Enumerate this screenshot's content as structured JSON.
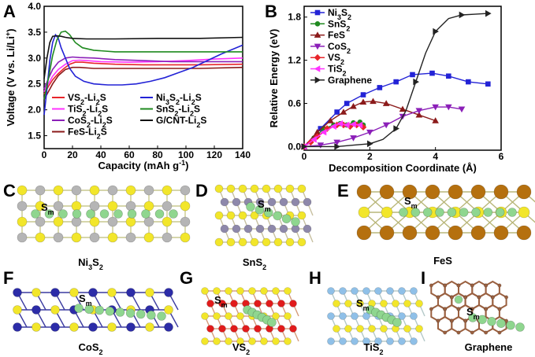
{
  "panel_letters": {
    "A": "A",
    "B": "B",
    "C": "C",
    "D": "D",
    "E": "E",
    "F": "F",
    "G": "G",
    "H": "H",
    "I": "I"
  },
  "chart_data": [
    {
      "type": "line",
      "panel": "A",
      "xlabel": "Capacity (mAh g",
      "xlabel_sup": "-1",
      "xlabel_end": ")",
      "ylabel": "Voltage (V vs. Li/Li",
      "ylabel_sup": "+",
      "ylabel_end": ")",
      "xlim": [
        0,
        140
      ],
      "ylim": [
        1.25,
        4.0
      ],
      "xticks": [
        "0",
        "20",
        "40",
        "60",
        "80",
        "100",
        "120",
        "140"
      ],
      "yticks": [
        "1.5",
        "2.0",
        "2.5",
        "3.0",
        "3.5",
        "4.0"
      ],
      "grid": false,
      "series": [
        {
          "name": "VS2-Li2S",
          "label_main": "VS",
          "label_s1": "2",
          "label_mid": "-Li",
          "label_s2": "2",
          "label_end": "S",
          "color": "#e8252b",
          "x": [
            0,
            3,
            6,
            10,
            14,
            18,
            22,
            27,
            35,
            50,
            70,
            90,
            110,
            140
          ],
          "y": [
            2.3,
            2.45,
            2.58,
            2.7,
            2.8,
            2.88,
            2.92,
            2.92,
            2.9,
            2.88,
            2.87,
            2.87,
            2.87,
            2.88
          ]
        },
        {
          "name": "TiS2-Li2S",
          "label_main": "TiS",
          "label_s1": "2",
          "label_mid": "-Li",
          "label_s2": "2",
          "label_end": "S",
          "color": "#ff33ff",
          "x": [
            0,
            3,
            6,
            10,
            15,
            20,
            25,
            30,
            40,
            60,
            80,
            100,
            120,
            140
          ],
          "y": [
            2.35,
            2.5,
            2.65,
            2.78,
            2.88,
            2.95,
            2.96,
            2.95,
            2.93,
            2.92,
            2.93,
            2.95,
            2.98,
            3.0
          ]
        },
        {
          "name": "CoS2-Li2S",
          "label_main": "CoS",
          "label_s1": "2",
          "label_mid": "-Li",
          "label_s2": "2",
          "label_end": "S",
          "color": "#8b1fb8",
          "x": [
            0,
            3,
            6,
            10,
            15,
            20,
            25,
            35,
            50,
            70,
            90,
            110,
            140
          ],
          "y": [
            2.4,
            2.6,
            2.78,
            2.92,
            3.0,
            3.02,
            3.01,
            3.0,
            2.97,
            2.95,
            2.93,
            2.93,
            2.93
          ]
        },
        {
          "name": "FeS-Li2S",
          "label_main": "FeS-Li",
          "label_s1": "",
          "label_mid": "",
          "label_s2": "2",
          "label_end": "S",
          "color": "#8b1a1a",
          "x": [
            0,
            3,
            6,
            10,
            15,
            20,
            25,
            35,
            50,
            70,
            90,
            110,
            140
          ],
          "y": [
            2.2,
            2.35,
            2.5,
            2.66,
            2.78,
            2.82,
            2.82,
            2.8,
            2.8,
            2.8,
            2.8,
            2.8,
            2.82
          ]
        },
        {
          "name": "Ni3S2-Li2S",
          "label_main": "Ni",
          "label_s1": "3",
          "label_mid": "S",
          "label_mid_s": "2",
          "label_mid2": "-Li",
          "label_s2": "2",
          "label_end": "S",
          "color": "#2323d6",
          "x": [
            0,
            2,
            4,
            6,
            8,
            10,
            12,
            15,
            18,
            22,
            28,
            35,
            45,
            55,
            65,
            75,
            85,
            95,
            105,
            115,
            125,
            140
          ],
          "y": [
            1.9,
            2.4,
            2.95,
            3.3,
            3.45,
            3.38,
            3.2,
            3.0,
            2.8,
            2.65,
            2.55,
            2.5,
            2.48,
            2.48,
            2.5,
            2.55,
            2.62,
            2.72,
            2.82,
            2.95,
            3.08,
            3.25
          ]
        },
        {
          "name": "SnS2-Li2S",
          "label_main": "SnS",
          "label_s1": "2",
          "label_mid": "-Li",
          "label_s2": "2",
          "label_end": "S",
          "color": "#1f8a1f",
          "x": [
            0,
            3,
            6,
            9,
            12,
            15,
            18,
            22,
            27,
            35,
            50,
            70,
            90,
            110,
            140
          ],
          "y": [
            2.2,
            2.6,
            3.05,
            3.35,
            3.5,
            3.52,
            3.45,
            3.3,
            3.2,
            3.15,
            3.12,
            3.12,
            3.12,
            3.12,
            3.12
          ]
        },
        {
          "name": "G/CNT-Li2S",
          "label_main": "G/CNT-Li",
          "label_s1": "",
          "label_mid": "",
          "label_s2": "2",
          "label_end": "S",
          "color": "#111111",
          "x": [
            0,
            2,
            4,
            6,
            9,
            12,
            15,
            20,
            30,
            50,
            80,
            110,
            140
          ],
          "y": [
            2.6,
            3.0,
            3.3,
            3.42,
            3.43,
            3.42,
            3.4,
            3.38,
            3.37,
            3.37,
            3.38,
            3.38,
            3.4
          ]
        }
      ]
    },
    {
      "type": "line",
      "panel": "B",
      "xlabel": "Decomposition Coordinate (Å)",
      "ylabel": "Relative Energy (eV)",
      "xlim": [
        0,
        6
      ],
      "ylim": [
        -0.05,
        1.95
      ],
      "xticks": [
        "0",
        "2",
        "4",
        "6"
      ],
      "yticks": [
        "0.0",
        "0.6",
        "1.2",
        "1.8"
      ],
      "grid": false,
      "series": [
        {
          "name": "Ni3S2",
          "label_main": "Ni",
          "label_s1": "3",
          "label_mid": "S",
          "label_s2": "2",
          "label_end": "",
          "marker": "square",
          "color": "#2323d6",
          "x": [
            0,
            0.5,
            1.0,
            1.3,
            1.8,
            2.3,
            2.8,
            3.3,
            3.9,
            4.4,
            5.0,
            5.6
          ],
          "y": [
            0.0,
            0.25,
            0.48,
            0.6,
            0.72,
            0.82,
            0.9,
            1.0,
            1.02,
            0.98,
            0.9,
            0.87
          ]
        },
        {
          "name": "SnS2",
          "label_main": "SnS",
          "label_s1": "2",
          "label_mid": "",
          "label_s2": "",
          "label_end": "",
          "marker": "circle",
          "color": "#1f8a1f",
          "x": [
            0,
            0.3,
            0.6,
            0.9,
            1.1,
            1.3,
            1.5,
            1.7,
            1.8
          ],
          "y": [
            0.0,
            0.12,
            0.25,
            0.3,
            0.32,
            0.3,
            0.33,
            0.34,
            0.3
          ]
        },
        {
          "name": "FeS",
          "label_main": "FeS",
          "label_s1": "",
          "label_mid": "",
          "label_s2": "",
          "label_end": "",
          "marker": "triangle",
          "color": "#8b1a1a",
          "x": [
            0,
            0.4,
            0.8,
            1.2,
            1.5,
            1.8,
            2.1,
            2.5,
            3.0,
            3.5,
            4.0
          ],
          "y": [
            0.0,
            0.2,
            0.36,
            0.48,
            0.56,
            0.62,
            0.63,
            0.6,
            0.52,
            0.44,
            0.36
          ]
        },
        {
          "name": "CoS2",
          "label_main": "CoS",
          "label_s1": "2",
          "label_mid": "",
          "label_s2": "",
          "label_end": "",
          "marker": "triangle-down",
          "color": "#8b1fb8",
          "x": [
            0,
            0.5,
            1.0,
            1.5,
            2.0,
            2.5,
            3.0,
            3.5,
            4.0,
            4.4,
            4.8
          ],
          "y": [
            0.0,
            0.02,
            0.06,
            0.12,
            0.2,
            0.3,
            0.42,
            0.5,
            0.55,
            0.55,
            0.52
          ]
        },
        {
          "name": "VS2",
          "label_main": "VS",
          "label_s1": "2",
          "label_mid": "",
          "label_s2": "",
          "label_end": "",
          "marker": "diamond",
          "color": "#e8252b",
          "x": [
            0,
            0.2,
            0.4,
            0.7,
            1.0,
            1.2,
            1.4,
            1.6,
            1.8
          ],
          "y": [
            0.0,
            0.06,
            0.14,
            0.25,
            0.3,
            0.3,
            0.28,
            0.3,
            0.27
          ]
        },
        {
          "name": "TiS2",
          "label_main": "TiS",
          "label_s1": "2",
          "label_mid": "",
          "label_s2": "",
          "label_end": "",
          "marker": "triangle-left",
          "color": "#ff33ff",
          "x": [
            0,
            0.3,
            0.6,
            0.9,
            1.1,
            1.3,
            1.5,
            1.7
          ],
          "y": [
            0.0,
            0.1,
            0.2,
            0.28,
            0.32,
            0.3,
            0.31,
            0.3
          ]
        },
        {
          "name": "Graphene",
          "label_main": "Graphene",
          "label_s1": "",
          "label_mid": "",
          "label_s2": "",
          "label_end": "",
          "marker": "triangle-right",
          "color": "#222222",
          "x": [
            0,
            0.5,
            1.0,
            1.5,
            2.0,
            2.4,
            2.8,
            3.1,
            3.4,
            3.7,
            4.0,
            4.4,
            4.8,
            5.2,
            5.6
          ],
          "y": [
            0.0,
            0.0,
            0.0,
            0.02,
            0.04,
            0.1,
            0.25,
            0.5,
            0.9,
            1.3,
            1.6,
            1.78,
            1.83,
            1.84,
            1.85
          ]
        }
      ]
    }
  ],
  "structures": {
    "C": {
      "label_main": "Ni",
      "label_s1": "3",
      "label_mid": "S",
      "label_s2": "2",
      "sm": "S",
      "sm_sub": "m"
    },
    "D": {
      "label_main": "SnS",
      "label_s1": "2",
      "label_mid": "",
      "label_s2": "",
      "sm": "S",
      "sm_sub": "m"
    },
    "E": {
      "label_main": "FeS",
      "label_s1": "",
      "label_mid": "",
      "label_s2": "",
      "sm": "S",
      "sm_sub": "m"
    },
    "F": {
      "label_main": "CoS",
      "label_s1": "2",
      "label_mid": "",
      "label_s2": "",
      "sm": "S",
      "sm_sub": "m"
    },
    "G": {
      "label_main": "VS",
      "label_s1": "2",
      "label_mid": "",
      "label_s2": "",
      "sm": "S",
      "sm_sub": "m"
    },
    "H": {
      "label_main": "TiS",
      "label_s1": "2",
      "label_mid": "",
      "label_s2": "",
      "sm": "S",
      "sm_sub": "m"
    },
    "I": {
      "label_main": "Graphene",
      "label_s1": "",
      "label_mid": "",
      "label_s2": "",
      "sm": "S",
      "sm_sub": "m"
    }
  },
  "colors": {
    "sulfur": "#f2e62a",
    "li": "#8fd68f",
    "ni": "#b5b5b5",
    "sn": "#8e88aa",
    "fe": "#b5700f",
    "co": "#2c2ca8",
    "v": "#e11b1b",
    "ti": "#8fc0e8",
    "c": "#9a6040"
  }
}
